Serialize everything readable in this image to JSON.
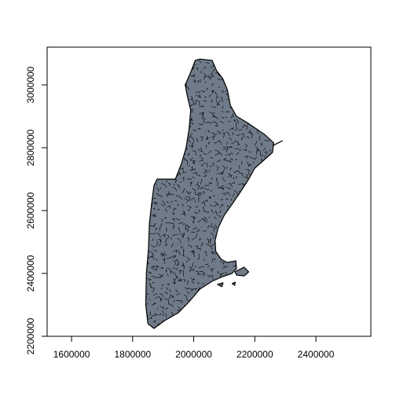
{
  "chart_data": {
    "type": "map",
    "title": "",
    "xlabel": "",
    "ylabel": "",
    "xlim": [
      1520000,
      2580000
    ],
    "ylim": [
      2200000,
      3120000
    ],
    "x_ticks": [
      1600000,
      1800000,
      2000000,
      2200000,
      2400000
    ],
    "y_ticks": [
      2200000,
      2400000,
      2600000,
      2800000,
      3000000
    ],
    "x_tick_labels": [
      "1600000",
      "1800000",
      "2000000",
      "2200000",
      "2400000"
    ],
    "y_tick_labels": [
      "2200000",
      "2400000",
      "2600000",
      "2800000",
      "3000000"
    ],
    "fill_color": "#707b89",
    "border_color": "#000000",
    "outline": [
      [
        2020000,
        3082000
      ],
      [
        2060000,
        3078000
      ],
      [
        2075000,
        3045000
      ],
      [
        2095000,
        3020000
      ],
      [
        2110000,
        2985000
      ],
      [
        2120000,
        2935000
      ],
      [
        2140000,
        2900000
      ],
      [
        2175000,
        2880000
      ],
      [
        2205000,
        2860000
      ],
      [
        2235000,
        2840000
      ],
      [
        2262000,
        2815000
      ],
      [
        2258000,
        2785000
      ],
      [
        2235000,
        2765000
      ],
      [
        2200000,
        2735000
      ],
      [
        2180000,
        2700000
      ],
      [
        2150000,
        2655000
      ],
      [
        2125000,
        2620000
      ],
      [
        2100000,
        2585000
      ],
      [
        2080000,
        2545000
      ],
      [
        2070000,
        2505000
      ],
      [
        2072000,
        2470000
      ],
      [
        2090000,
        2445000
      ],
      [
        2110000,
        2435000
      ],
      [
        2138000,
        2440000
      ],
      [
        2140000,
        2415000
      ],
      [
        2125000,
        2400000
      ],
      [
        2095000,
        2390000
      ],
      [
        2060000,
        2375000
      ],
      [
        2020000,
        2350000
      ],
      [
        1985000,
        2310000
      ],
      [
        1950000,
        2275000
      ],
      [
        1905000,
        2250000
      ],
      [
        1870000,
        2225000
      ],
      [
        1850000,
        2240000
      ],
      [
        1843000,
        2300000
      ],
      [
        1845000,
        2400000
      ],
      [
        1852000,
        2480000
      ],
      [
        1855000,
        2560000
      ],
      [
        1862000,
        2620000
      ],
      [
        1870000,
        2680000
      ],
      [
        1880000,
        2700000
      ],
      [
        1940000,
        2700000
      ],
      [
        1960000,
        2750000
      ],
      [
        1975000,
        2800000
      ],
      [
        1985000,
        2860000
      ],
      [
        1990000,
        2920000
      ],
      [
        1980000,
        2960000
      ],
      [
        1972000,
        3000000
      ],
      [
        1990000,
        3040000
      ],
      [
        2005000,
        3078000
      ]
    ],
    "islands": [
      [
        [
          2135000,
          2405000
        ],
        [
          2165000,
          2420000
        ],
        [
          2180000,
          2405000
        ],
        [
          2165000,
          2392000
        ],
        [
          2140000,
          2395000
        ]
      ],
      [
        [
          2078000,
          2365000
        ],
        [
          2096000,
          2370000
        ],
        [
          2092000,
          2358000
        ]
      ],
      [
        [
          2126000,
          2368000
        ],
        [
          2136000,
          2372000
        ],
        [
          2134000,
          2362000
        ]
      ],
      [
        [
          2262000,
          2808000
        ],
        [
          2290000,
          2822000
        ],
        [
          2270000,
          2812000
        ]
      ]
    ]
  }
}
